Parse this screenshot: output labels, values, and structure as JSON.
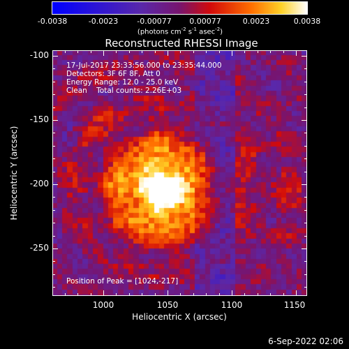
{
  "colorbar": {
    "ticks": [
      "-0.0038",
      "-0.0023",
      "-0.00077",
      "0.00077",
      "0.0023",
      "0.0038"
    ],
    "units": {
      "pre": "(photons cm",
      "sup1": "-2",
      "mid1": " s",
      "sup2": "-1",
      "mid2": " asec",
      "sup3": "-2",
      "post": ")"
    }
  },
  "title": "Reconstructed RHESSI Image",
  "info": {
    "line1": "17-Jul-2017 23:33:56.000 to 23:35:44.000",
    "line2": "Detectors: 3F 6F 8F, Att 0",
    "line3": "Energy Range: 12.0 - 25.0 keV",
    "line4": "Clean    Total counts: 2.26E+03"
  },
  "peak": "Position of Peak = [1024,-217]",
  "axes": {
    "xlabel": "Heliocentric X (arcsec)",
    "ylabel": "Heliocentric Y (arcsec)",
    "xticks": [
      "1000",
      "1050",
      "1100",
      "1150"
    ],
    "yticks": [
      "-100",
      "-150",
      "-200",
      "-250"
    ]
  },
  "footer_date": "6-Sep-2022 02:06",
  "colors": {
    "background": "#000000",
    "text": "#ffffff"
  }
}
